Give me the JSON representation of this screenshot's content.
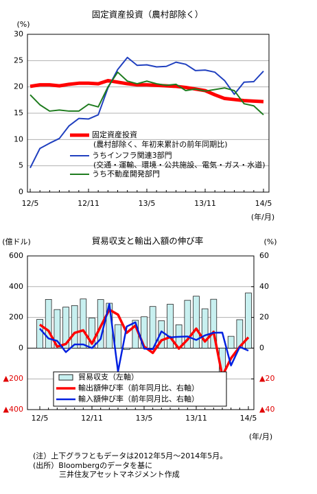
{
  "chart_data": [
    {
      "type": "line",
      "title": "固定資産投資（農村部除く）",
      "y_label": "(%)",
      "x_label": "(年/月)",
      "categories": [
        "12/5",
        null,
        null,
        null,
        null,
        null,
        "12/11",
        null,
        null,
        null,
        null,
        null,
        "13/5",
        null,
        null,
        null,
        null,
        null,
        "13/11",
        null,
        null,
        null,
        null,
        null,
        "14/5"
      ],
      "ylim": [
        0,
        30
      ],
      "yticks": [
        0,
        5,
        10,
        15,
        20,
        25,
        30
      ],
      "grid": true,
      "series": [
        {
          "name": "固定資産投資",
          "sublabel": "(農村部除く、年初来累計の前年同期比)",
          "color": "#ff0000",
          "linewidth": 5,
          "values": [
            20.1,
            20.4,
            20.4,
            20.2,
            20.5,
            20.7,
            20.7,
            20.6,
            21.2,
            20.9,
            20.6,
            20.4,
            20.4,
            20.3,
            20.2,
            20.1,
            19.9,
            19.6,
            19.3,
            18.5,
            17.8,
            17.6,
            17.4,
            17.3,
            17.2
          ]
        },
        {
          "name": "うちインフラ関連3部門",
          "sublabel": "(交通・運輸、環境・公共施設、電気・ガス・水道)",
          "color": "#1f3fbf",
          "linewidth": 2,
          "values": [
            4.6,
            8.3,
            9.3,
            10.2,
            12.6,
            14.0,
            13.9,
            14.7,
            19.8,
            23.3,
            25.6,
            24.1,
            24.2,
            23.8,
            23.9,
            24.7,
            24.3,
            23.1,
            23.2,
            22.8,
            21.2,
            18.6,
            20.9,
            21.0,
            23.0
          ]
        },
        {
          "name": "うち不動産開発部門",
          "color": "#1e7b1e",
          "linewidth": 2,
          "values": [
            18.5,
            16.6,
            15.4,
            15.6,
            15.4,
            15.4,
            16.7,
            16.2,
            20.0,
            22.8,
            21.1,
            20.6,
            21.1,
            20.6,
            20.3,
            20.5,
            19.3,
            19.6,
            19.2,
            19.5,
            19.8,
            19.3,
            16.8,
            16.4,
            14.7
          ]
        }
      ]
    },
    {
      "type": "combo",
      "title": "貿易収支と輸出入額の伸び率",
      "y_label": "(億ドル)",
      "y2_label": "(%)",
      "x_label": "(年/月)",
      "categories": [
        "12/5",
        null,
        null,
        null,
        null,
        null,
        "12/11",
        null,
        null,
        null,
        null,
        null,
        "13/5",
        null,
        null,
        null,
        null,
        null,
        "13/11",
        null,
        null,
        null,
        null,
        null,
        "14/5"
      ],
      "ylim": [
        -400,
        600
      ],
      "yticks": [
        {
          "value": -400,
          "label": "▲400"
        },
        {
          "value": -200,
          "label": "▲200"
        },
        0,
        200,
        400,
        600
      ],
      "y2lim": [
        -40,
        60
      ],
      "y2ticks": [
        {
          "value": -40,
          "label": "▲40"
        },
        {
          "value": -20,
          "label": "▲20"
        },
        0,
        20,
        40,
        60
      ],
      "grid": true,
      "series": [
        {
          "name": "貿易収支（左軸）",
          "type": "bar",
          "color": "#c8f0f0",
          "values": [
            187,
            317,
            251,
            267,
            277,
            320,
            196,
            316,
            292,
            153,
            -8.8,
            181,
            204,
            271,
            178,
            286,
            152,
            311,
            338,
            256,
            318,
            -230,
            77,
            185,
            359
          ]
        },
        {
          "name": "輸出額伸び率（前年同月比、右軸）",
          "type": "line",
          "axis": "y2",
          "color": "#ff0000",
          "linewidth": 3.5,
          "values": [
            15.3,
            11.3,
            1.0,
            2.7,
            9.9,
            11.6,
            2.9,
            14.1,
            25.0,
            21.8,
            10.0,
            14.7,
            1.0,
            -3.1,
            5.1,
            7.2,
            -0.3,
            5.6,
            12.7,
            4.3,
            10.6,
            -18.1,
            -6.6,
            0.9,
            7.0
          ]
        },
        {
          "name": "輸入額伸び率（前年同月比、右軸）",
          "type": "line",
          "axis": "y2",
          "color": "#0020e0",
          "linewidth": 2.5,
          "values": [
            12.7,
            6.3,
            4.7,
            -2.6,
            2.4,
            2.4,
            0.0,
            6.0,
            28.8,
            -15.2,
            14.1,
            16.8,
            -0.3,
            -0.7,
            10.9,
            7.0,
            7.4,
            7.6,
            5.3,
            8.3,
            10.0,
            10.1,
            -11.3,
            0.8,
            -1.6
          ]
        }
      ]
    }
  ],
  "footnotes": [
    "(注）上下グラフともデータは2012年5月～2014年5月。",
    "(出所）Bloombergのデータを基に",
    "三井住友アセットマネジメント作成"
  ]
}
